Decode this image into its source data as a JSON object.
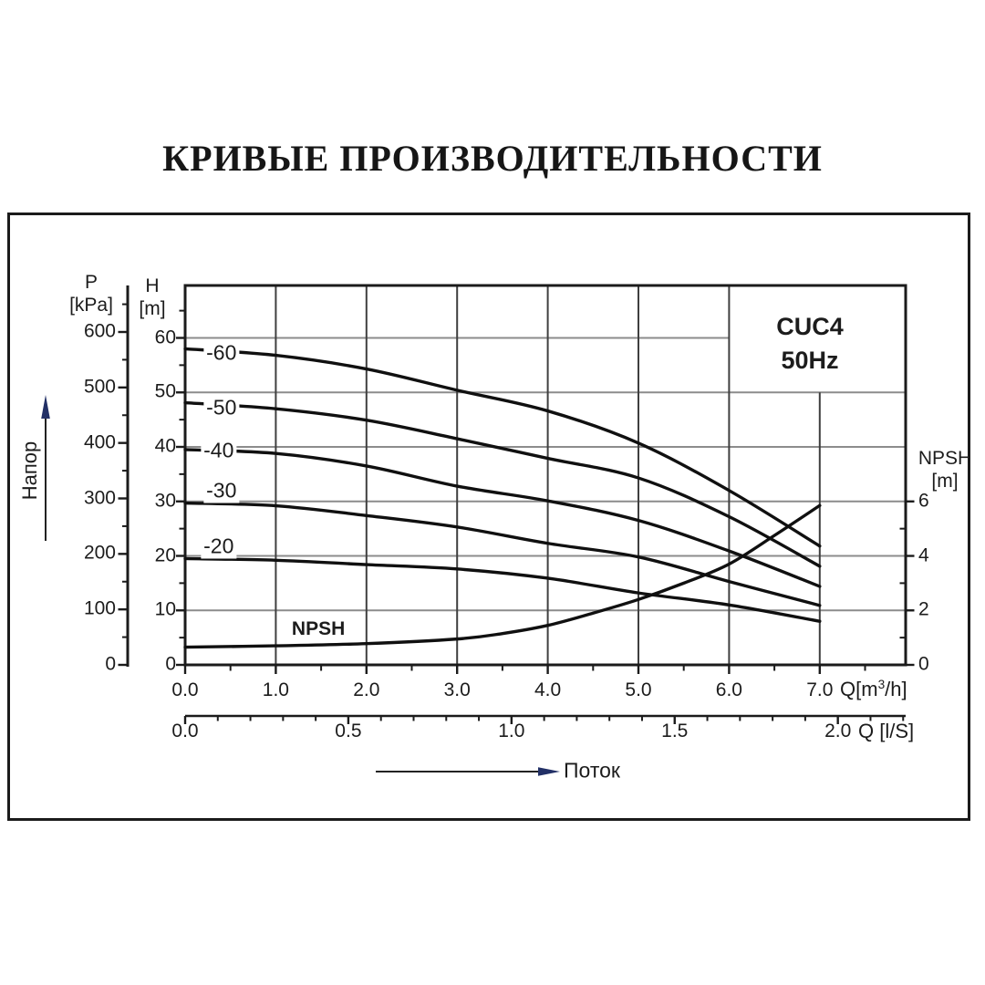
{
  "title": "КРИВЫЕ ПРОИЗВОДИТЕЛЬНОСТИ",
  "badge": {
    "line1": "CUC4",
    "line2": "50Hz"
  },
  "labels": {
    "left_arrow": "Напор",
    "bottom_arrow": "Поток",
    "npsh_curve": "NPSH"
  },
  "colors": {
    "text": "#1c1c1c",
    "curve": "#101010",
    "grid_horizontal": "#8c8c8c",
    "grid_vertical": "#3f3f3f",
    "frame": "#1b1b1b",
    "arrow_head": "#223066",
    "background": "#ffffff"
  },
  "axes": {
    "p": {
      "title": "P",
      "unit": "[kPa]",
      "ticks": [
        {
          "v": 600,
          "label": "600"
        },
        {
          "v": 500,
          "label": "500"
        },
        {
          "v": 400,
          "label": "400"
        },
        {
          "v": 300,
          "label": "300"
        },
        {
          "v": 200,
          "label": "200"
        },
        {
          "v": 100,
          "label": "100"
        },
        {
          "v": 0,
          "label": "0"
        }
      ]
    },
    "h": {
      "title": "H",
      "unit": "[m]",
      "ticks": [
        {
          "v": 60,
          "label": "60"
        },
        {
          "v": 50,
          "label": "50"
        },
        {
          "v": 40,
          "label": "40"
        },
        {
          "v": 30,
          "label": "30"
        },
        {
          "v": 20,
          "label": "20"
        },
        {
          "v": 10,
          "label": "10"
        },
        {
          "v": 0,
          "label": "0"
        }
      ]
    },
    "x": {
      "unit_prefix": "Q[m",
      "unit_sup": "3",
      "unit_suffix": "/h]",
      "ticks": [
        {
          "v": 0,
          "label": "0.0"
        },
        {
          "v": 1,
          "label": "1.0"
        },
        {
          "v": 2,
          "label": "2.0"
        },
        {
          "v": 3,
          "label": "3.0"
        },
        {
          "v": 4,
          "label": "4.0"
        },
        {
          "v": 5,
          "label": "5.0"
        },
        {
          "v": 6,
          "label": "6.0"
        },
        {
          "v": 7,
          "label": "7.0"
        }
      ]
    },
    "x2": {
      "unit": "Q [l/S]",
      "ticks": [
        {
          "v": 0,
          "label": "0.0"
        },
        {
          "v": 0.5,
          "label": "0.5"
        },
        {
          "v": 1,
          "label": "1.0"
        },
        {
          "v": 1.5,
          "label": "1.5"
        },
        {
          "v": 2,
          "label": "2.0"
        }
      ]
    },
    "npsh": {
      "title": "NPSH",
      "unit": "[m]",
      "ticks": [
        {
          "v": 6,
          "label": "6"
        },
        {
          "v": 4,
          "label": "4"
        },
        {
          "v": 2,
          "label": "2"
        },
        {
          "v": 0,
          "label": "0"
        }
      ]
    }
  },
  "chart_data": {
    "type": "line",
    "title": "КРИВЫЕ ПРОИЗВОДИТЕЛЬНОСТИ",
    "xlabel": "Q[m³/h]",
    "x2label": "Q [l/S]",
    "x2_per_x1": 3.6,
    "ylabel_left_head": "H [m]",
    "ylabel_left_pressure": "P [kPa]",
    "ylabel_right": "NPSH [m]",
    "xlim": [
      0,
      7.95
    ],
    "ylim_h": [
      0,
      69.6
    ],
    "ylim_npsh": [
      0,
      6
    ],
    "grid": "on",
    "x": [
      0,
      1,
      2,
      3,
      4,
      5,
      6,
      7
    ],
    "series": [
      {
        "name": "-60",
        "values": [
          58.0,
          56.8,
          54.3,
          50.4,
          46.6,
          40.7,
          32.0,
          21.8
        ],
        "label_q": 0.4,
        "label_h": 57.2
      },
      {
        "name": "-50",
        "values": [
          48.1,
          47.0,
          44.9,
          41.5,
          37.9,
          34.3,
          27.2,
          18.1
        ],
        "label_q": 0.4,
        "label_h": 47.2
      },
      {
        "name": "-40",
        "values": [
          39.5,
          38.8,
          36.5,
          32.8,
          30.1,
          26.5,
          20.9,
          14.4
        ],
        "label_q": 0.37,
        "label_h": 39.4
      },
      {
        "name": "-30",
        "values": [
          29.7,
          29.2,
          27.4,
          25.3,
          22.3,
          19.8,
          15.3,
          10.9
        ],
        "label_q": 0.4,
        "label_h": 32.0
      },
      {
        "name": "-20",
        "values": [
          19.5,
          19.2,
          18.4,
          17.6,
          15.9,
          13.2,
          11.0,
          8.0
        ],
        "label_q": 0.37,
        "label_h": 21.7
      }
    ],
    "npsh_series": {
      "name": "NPSH",
      "x": [
        0,
        1,
        2,
        3,
        3.5,
        4,
        4.5,
        5,
        5.5,
        6,
        6.5,
        7
      ],
      "values": [
        0.65,
        0.7,
        0.78,
        0.95,
        1.15,
        1.45,
        1.9,
        2.4,
        3.0,
        3.7,
        4.75,
        5.85
      ],
      "label_q": 1.47,
      "label_npsh": 1.3
    }
  }
}
